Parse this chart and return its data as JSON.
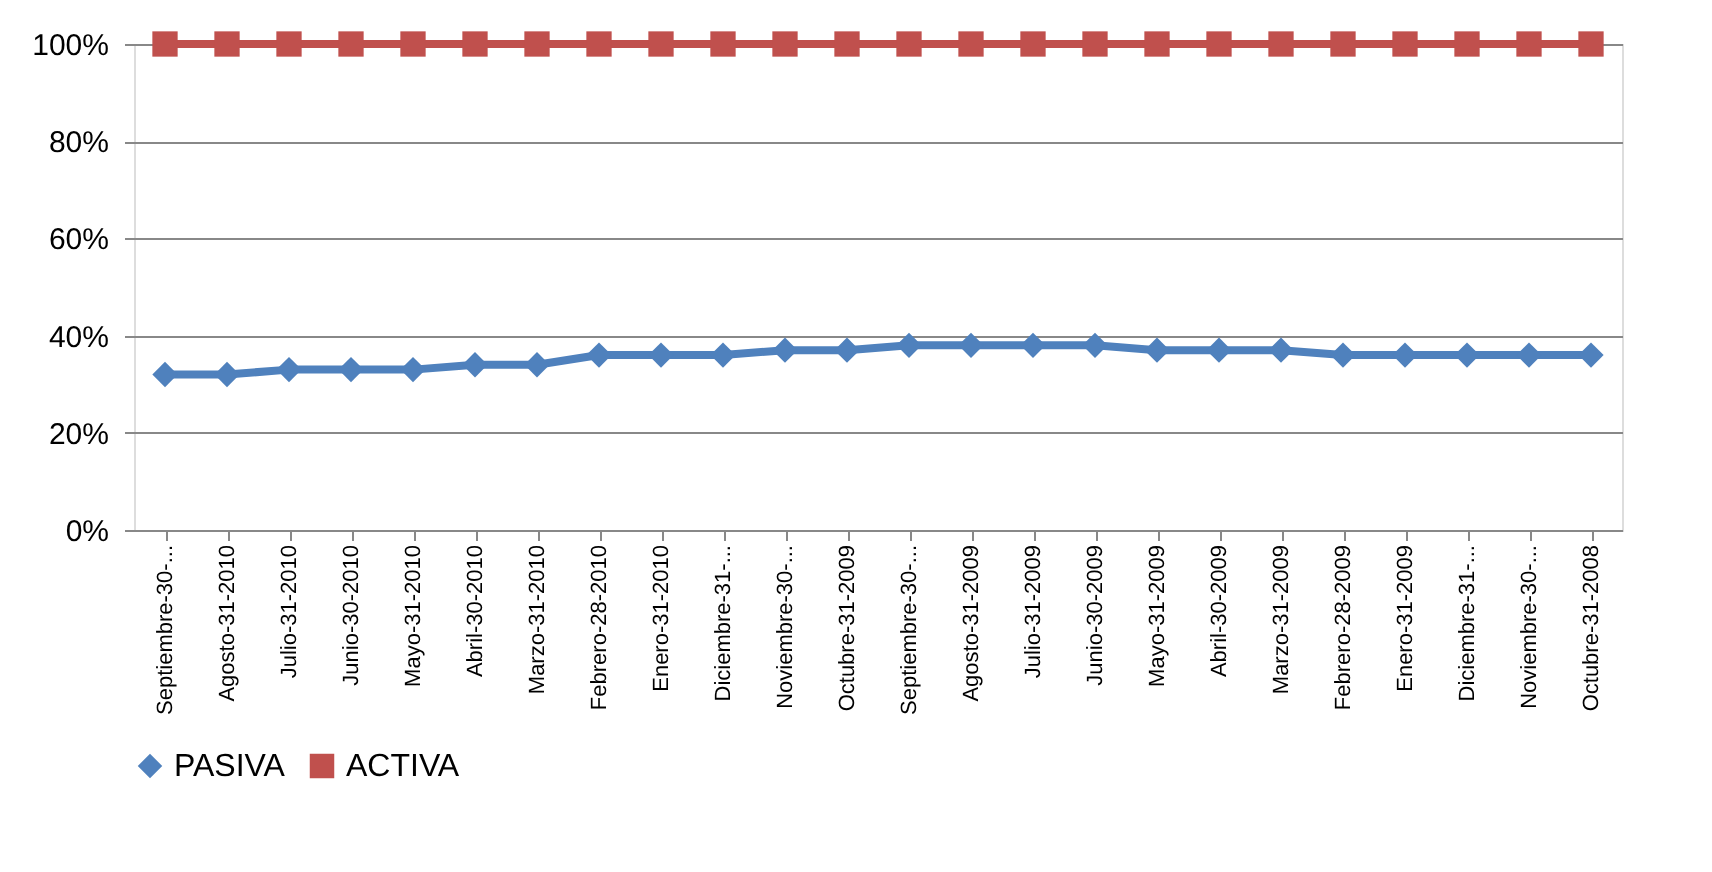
{
  "chart_data": {
    "type": "line",
    "categories": [
      "Septiembre-30-...",
      "Agosto-31-2010",
      "Julio-31-2010",
      "Junio-30-2010",
      "Mayo-31-2010",
      "Abril-30-2010",
      "Marzo-31-2010",
      "Febrero-28-2010",
      "Enero-31-2010",
      "Diciembre-31-...",
      "Noviembre-30-...",
      "Octubre-31-2009",
      "Septiembre-30-...",
      "Agosto-31-2009",
      "Julio-31-2009",
      "Junio-30-2009",
      "Mayo-31-2009",
      "Abril-30-2009",
      "Marzo-31-2009",
      "Febrero-28-2009",
      "Enero-31-2009",
      "Diciembre-31-...",
      "Noviembre-30-...",
      "Octubre-31-2008"
    ],
    "series": [
      {
        "name": "PASIVA",
        "color": "#4f81bd",
        "marker": "diamond",
        "values": [
          32,
          32,
          33,
          33,
          33,
          34,
          34,
          36,
          36,
          36,
          37,
          37,
          38,
          38,
          38,
          38,
          37,
          37,
          37,
          36,
          36,
          36,
          36,
          36
        ]
      },
      {
        "name": "ACTIVA",
        "color": "#c0504d",
        "marker": "square",
        "values": [
          100,
          100,
          100,
          100,
          100,
          100,
          100,
          100,
          100,
          100,
          100,
          100,
          100,
          100,
          100,
          100,
          100,
          100,
          100,
          100,
          100,
          100,
          100,
          100
        ]
      }
    ],
    "ylim": [
      0,
      100
    ],
    "yticks": [
      {
        "value": 0,
        "label": "0%"
      },
      {
        "value": 20,
        "label": "20%"
      },
      {
        "value": 40,
        "label": "40%"
      },
      {
        "value": 60,
        "label": "60%"
      },
      {
        "value": 80,
        "label": "80%"
      },
      {
        "value": 100,
        "label": "100%"
      }
    ],
    "grid": "y",
    "legend": "bottom",
    "line_style": "solid"
  }
}
